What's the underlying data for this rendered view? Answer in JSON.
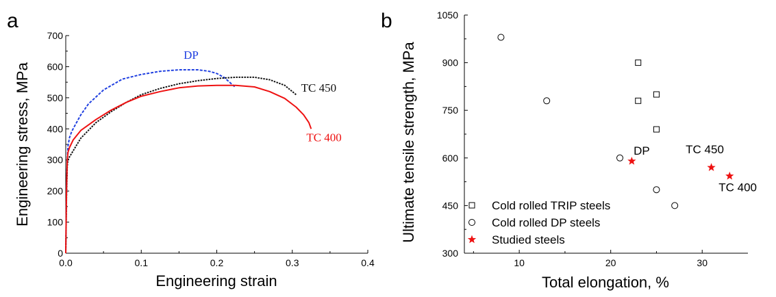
{
  "panels": {
    "a": "a",
    "b": "b"
  },
  "chart_data": [
    {
      "type": "line",
      "panel_label": "a",
      "xlabel": "Engineering strain",
      "ylabel": "Engineering stress, MPa",
      "xlim": [
        0,
        0.4
      ],
      "ylim": [
        0,
        700
      ],
      "xticks": [
        "0.0",
        "0.1",
        "0.2",
        "0.3",
        "0.4"
      ],
      "yticks": [
        "0",
        "100",
        "200",
        "300",
        "400",
        "500",
        "600",
        "700"
      ],
      "series": [
        {
          "name": "DP",
          "color": "#1f3fe0",
          "dash": "dashed",
          "x": [
            0,
            0.001,
            0.002,
            0.003,
            0.005,
            0.008,
            0.012,
            0.02,
            0.03,
            0.05,
            0.075,
            0.1,
            0.125,
            0.15,
            0.175,
            0.19,
            0.2,
            0.21,
            0.218,
            0.224
          ],
          "y": [
            0,
            200,
            300,
            345,
            372,
            392,
            410,
            445,
            480,
            525,
            560,
            575,
            585,
            590,
            590,
            585,
            578,
            565,
            548,
            535
          ]
        },
        {
          "name": "TC 450",
          "color": "#111111",
          "dash": "dotted",
          "x": [
            0,
            0.001,
            0.002,
            0.003,
            0.005,
            0.01,
            0.02,
            0.04,
            0.06,
            0.08,
            0.1,
            0.125,
            0.15,
            0.175,
            0.2,
            0.225,
            0.25,
            0.27,
            0.29,
            0.305
          ],
          "y": [
            0,
            180,
            280,
            300,
            310,
            330,
            370,
            420,
            455,
            485,
            510,
            530,
            545,
            555,
            562,
            566,
            566,
            558,
            540,
            510
          ]
        },
        {
          "name": "TC 400",
          "color": "#ee1111",
          "dash": "solid",
          "x": [
            0,
            0.001,
            0.002,
            0.003,
            0.005,
            0.01,
            0.02,
            0.04,
            0.06,
            0.08,
            0.1,
            0.125,
            0.15,
            0.175,
            0.2,
            0.225,
            0.25,
            0.27,
            0.29,
            0.305,
            0.315,
            0.322,
            0.325
          ],
          "y": [
            0,
            200,
            300,
            325,
            340,
            365,
            395,
            430,
            460,
            485,
            505,
            520,
            532,
            538,
            540,
            540,
            535,
            520,
            498,
            470,
            445,
            420,
            400
          ]
        }
      ],
      "annotations": [
        {
          "text": "DP",
          "color": "#1f3fe0",
          "x": 0.166,
          "y": 625
        },
        {
          "text": "TC 450",
          "color": "#111111",
          "x": 0.335,
          "y": 520
        },
        {
          "text": "TC 400",
          "color": "#ee1111",
          "x": 0.342,
          "y": 360
        }
      ]
    },
    {
      "type": "scatter",
      "panel_label": "b",
      "xlabel": "Total elongation, %",
      "ylabel": "Ultimate tensile strength, MPa",
      "xlim": [
        4,
        35
      ],
      "ylim": [
        300,
        1050
      ],
      "xticks": [
        10,
        20,
        30
      ],
      "yticks": [
        300,
        450,
        600,
        750,
        900,
        1050
      ],
      "legend_position": "bottom-left",
      "series": [
        {
          "name": "Cold rolled TRIP steels",
          "marker": "square",
          "color": "#000000",
          "points": [
            [
              23,
              900
            ],
            [
              23,
              780
            ],
            [
              25,
              800
            ],
            [
              25,
              690
            ]
          ]
        },
        {
          "name": "Cold rolled DP steels",
          "marker": "circle",
          "color": "#000000",
          "points": [
            [
              8,
              980
            ],
            [
              13,
              780
            ],
            [
              21,
              600
            ],
            [
              25,
              500
            ],
            [
              27,
              450
            ]
          ]
        },
        {
          "name": "Studied steels",
          "marker": "star",
          "color": "#ee1111",
          "points": [
            [
              22.3,
              590
            ],
            [
              31,
              570
            ],
            [
              33,
              543
            ]
          ]
        }
      ],
      "annotations": [
        {
          "text": "DP",
          "x": 22.5,
          "y": 610
        },
        {
          "text": "TC 450",
          "x": 28.2,
          "y": 615
        },
        {
          "text": "TC 400",
          "x": 31.8,
          "y": 495
        }
      ]
    }
  ]
}
